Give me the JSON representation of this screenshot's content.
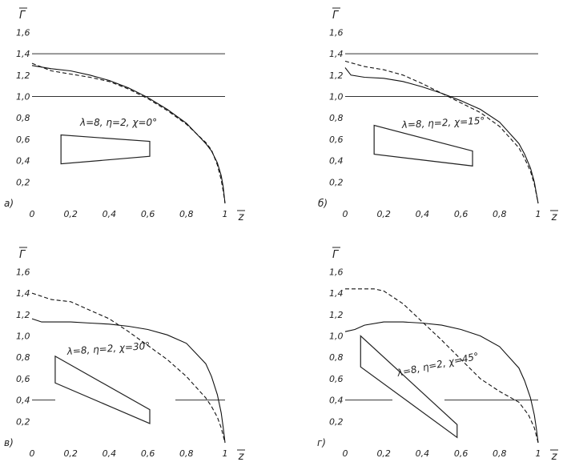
{
  "figure": {
    "y_axis_symbol": "Γ",
    "x_axis_symbol": "z",
    "y_ticks": [
      "0,2",
      "0,4",
      "0,6",
      "0,8",
      "1,0",
      "1,2",
      "1,4",
      "1,6"
    ],
    "x_ticks": [
      "0",
      "0,2",
      "0,4",
      "0,6",
      "0,8",
      "1"
    ]
  },
  "chart_data": [
    {
      "type": "line",
      "panel_label": "а)",
      "annotation": "λ=8, η=2, χ=0°",
      "xlim": [
        0,
        1
      ],
      "ylim": [
        0,
        1.6
      ],
      "reference_lines": [
        1.4,
        1.0
      ],
      "planform": [
        [
          0.15,
          0.37
        ],
        [
          0.15,
          0.64
        ],
        [
          0.61,
          0.58
        ],
        [
          0.61,
          0.44
        ]
      ],
      "series": [
        {
          "style": "solid",
          "x": [
            0,
            0.1,
            0.2,
            0.3,
            0.4,
            0.5,
            0.6,
            0.7,
            0.8,
            0.9,
            0.93,
            0.96,
            0.98,
            0.99,
            1.0
          ],
          "y": [
            1.29,
            1.26,
            1.24,
            1.2,
            1.15,
            1.08,
            0.99,
            0.88,
            0.75,
            0.56,
            0.49,
            0.38,
            0.26,
            0.16,
            0.0
          ]
        },
        {
          "style": "dashed",
          "x": [
            0,
            0.1,
            0.2,
            0.3,
            0.4,
            0.5,
            0.6,
            0.7,
            0.8,
            0.9,
            0.93,
            0.96,
            0.98,
            0.99,
            1.0
          ],
          "y": [
            1.31,
            1.24,
            1.21,
            1.18,
            1.14,
            1.07,
            0.98,
            0.87,
            0.74,
            0.57,
            0.5,
            0.36,
            0.22,
            0.12,
            0.0
          ]
        }
      ]
    },
    {
      "type": "line",
      "panel_label": "б)",
      "annotation": "λ=8, η=2, χ=15°",
      "xlim": [
        0,
        1
      ],
      "ylim": [
        0,
        1.6
      ],
      "reference_lines": [
        1.4,
        1.0
      ],
      "planform": [
        [
          0.15,
          0.46
        ],
        [
          0.15,
          0.73
        ],
        [
          0.66,
          0.49
        ],
        [
          0.66,
          0.35
        ]
      ],
      "series": [
        {
          "style": "solid",
          "x": [
            0,
            0.03,
            0.1,
            0.2,
            0.3,
            0.4,
            0.5,
            0.6,
            0.7,
            0.8,
            0.9,
            0.93,
            0.96,
            0.98,
            0.99,
            1.0
          ],
          "y": [
            1.27,
            1.2,
            1.18,
            1.17,
            1.14,
            1.09,
            1.03,
            0.96,
            0.88,
            0.76,
            0.56,
            0.46,
            0.33,
            0.2,
            0.1,
            0.0
          ]
        },
        {
          "style": "dashed",
          "x": [
            0,
            0.1,
            0.2,
            0.3,
            0.4,
            0.5,
            0.6,
            0.7,
            0.8,
            0.9,
            0.93,
            0.96,
            0.98,
            0.99,
            1.0
          ],
          "y": [
            1.33,
            1.28,
            1.25,
            1.2,
            1.12,
            1.03,
            0.94,
            0.85,
            0.72,
            0.52,
            0.42,
            0.3,
            0.18,
            0.09,
            0.0
          ]
        }
      ]
    },
    {
      "type": "line",
      "panel_label": "в)",
      "annotation": "λ=8, η=2, χ=30°",
      "xlim": [
        0,
        1
      ],
      "ylim": [
        0,
        1.6
      ],
      "reference_lines": [
        0.4
      ],
      "planform": [
        [
          0.12,
          0.56
        ],
        [
          0.12,
          0.81
        ],
        [
          0.61,
          0.31
        ],
        [
          0.61,
          0.18
        ]
      ],
      "series": [
        {
          "style": "solid",
          "x": [
            0,
            0.05,
            0.1,
            0.2,
            0.3,
            0.4,
            0.5,
            0.6,
            0.7,
            0.8,
            0.9,
            0.93,
            0.96,
            0.98,
            0.99,
            1.0
          ],
          "y": [
            1.16,
            1.13,
            1.13,
            1.13,
            1.12,
            1.11,
            1.09,
            1.06,
            1.01,
            0.93,
            0.74,
            0.62,
            0.45,
            0.28,
            0.15,
            0.0
          ]
        },
        {
          "style": "dashed",
          "x": [
            0,
            0.1,
            0.2,
            0.3,
            0.4,
            0.5,
            0.6,
            0.7,
            0.8,
            0.9,
            0.93,
            0.96,
            0.98,
            0.99,
            1.0
          ],
          "y": [
            1.4,
            1.34,
            1.32,
            1.24,
            1.16,
            1.04,
            0.91,
            0.78,
            0.62,
            0.42,
            0.34,
            0.24,
            0.14,
            0.07,
            0.0
          ]
        }
      ]
    },
    {
      "type": "line",
      "panel_label": "г)",
      "annotation": "λ=8, η=2, χ=45°",
      "xlim": [
        0,
        1
      ],
      "ylim": [
        0,
        1.6
      ],
      "reference_lines": [
        0.4
      ],
      "planform": [
        [
          0.08,
          0.71
        ],
        [
          0.08,
          1.0
        ],
        [
          0.58,
          0.17
        ],
        [
          0.58,
          0.05
        ]
      ],
      "series": [
        {
          "style": "solid",
          "x": [
            0,
            0.05,
            0.1,
            0.2,
            0.3,
            0.4,
            0.5,
            0.6,
            0.7,
            0.8,
            0.9,
            0.93,
            0.96,
            0.98,
            0.99,
            1.0
          ],
          "y": [
            1.04,
            1.06,
            1.1,
            1.13,
            1.13,
            1.12,
            1.1,
            1.06,
            1.0,
            0.9,
            0.7,
            0.58,
            0.42,
            0.26,
            0.14,
            0.0
          ]
        },
        {
          "style": "dashed",
          "x": [
            0,
            0.15,
            0.2,
            0.3,
            0.4,
            0.5,
            0.6,
            0.7,
            0.8,
            0.9,
            0.95,
            0.98,
            0.99,
            1.0
          ],
          "y": [
            1.44,
            1.44,
            1.42,
            1.3,
            1.13,
            0.96,
            0.78,
            0.6,
            0.48,
            0.38,
            0.26,
            0.14,
            0.07,
            0.0
          ]
        }
      ]
    }
  ]
}
